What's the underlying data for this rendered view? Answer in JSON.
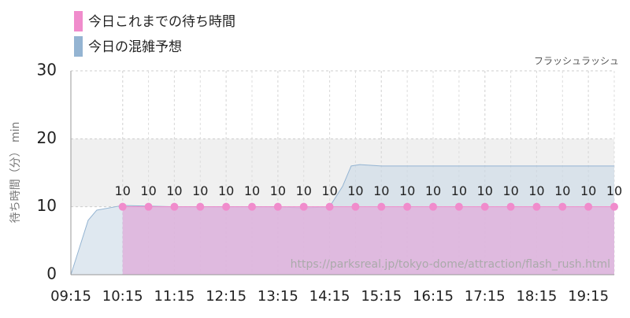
{
  "chart_data": {
    "type": "line",
    "subtitle": "フラッシュラッシュ",
    "y_label": "待ち時間（分） min",
    "watermark": "https://parksreal.jp/tokyo-dome/attraction/flash_rush.html",
    "xlim": [
      "09:15",
      "19:45"
    ],
    "xticks": [
      "09:15",
      "10:15",
      "11:15",
      "12:15",
      "13:15",
      "14:15",
      "15:15",
      "16:15",
      "17:15",
      "18:15",
      "19:15"
    ],
    "ylim": [
      0,
      30
    ],
    "yticks": [
      0,
      10,
      20,
      30
    ],
    "grid": true,
    "shaded_range": [
      10,
      20
    ],
    "series": [
      {
        "name": "今日これまでの待ち時間",
        "color": "#f08ccc",
        "x": [
          "10:15",
          "10:45",
          "11:15",
          "11:45",
          "12:15",
          "12:45",
          "13:15",
          "13:45",
          "14:15",
          "14:45",
          "15:15",
          "15:45",
          "16:15",
          "16:45",
          "17:15",
          "17:45",
          "18:15",
          "18:45",
          "19:15",
          "19:45"
        ],
        "values": [
          10,
          10,
          10,
          10,
          10,
          10,
          10,
          10,
          10,
          10,
          10,
          10,
          10,
          10,
          10,
          10,
          10,
          10,
          10,
          10
        ]
      },
      {
        "name": "今日の混雑予想",
        "color": "#94b4d2",
        "x": [
          "09:15",
          "09:25",
          "09:35",
          "09:45",
          "10:15",
          "11:15",
          "12:15",
          "13:15",
          "13:45",
          "14:15",
          "14:30",
          "14:40",
          "14:50",
          "15:15",
          "16:15",
          "17:15",
          "18:15",
          "19:15",
          "19:45"
        ],
        "values": [
          0,
          4,
          8,
          9.5,
          10.2,
          10,
          10,
          10,
          9.8,
          10,
          13,
          16,
          16.2,
          16,
          16,
          16,
          16,
          16,
          16
        ]
      }
    ]
  }
}
